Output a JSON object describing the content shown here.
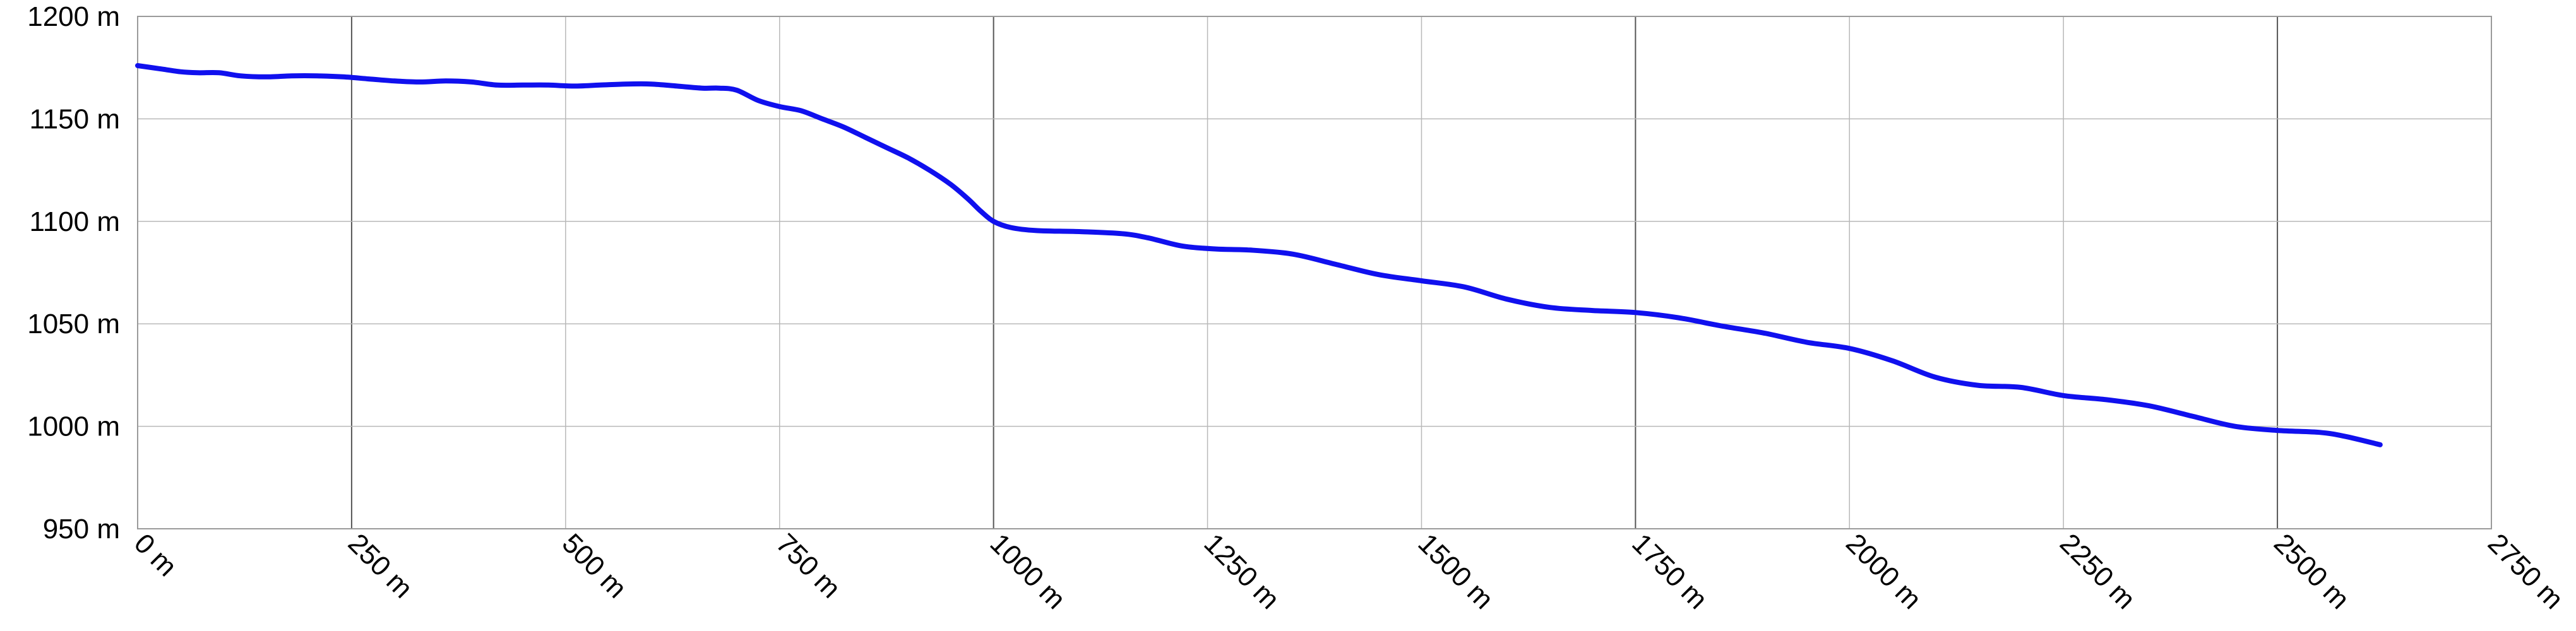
{
  "chart_data": {
    "type": "line",
    "title": "",
    "xlabel": "",
    "ylabel": "",
    "xlim": [
      0,
      2750
    ],
    "ylim": [
      950,
      1200
    ],
    "x_ticks": [
      0,
      250,
      500,
      750,
      1000,
      1250,
      1500,
      1750,
      2000,
      2250,
      2500,
      2750
    ],
    "x_tick_labels": [
      "0 m",
      "250 m",
      "500 m",
      "750 m",
      "1000 m",
      "1250 m",
      "1500 m",
      "1750 m",
      "2000 m",
      "2250 m",
      "2500 m",
      "2750 m"
    ],
    "y_ticks": [
      950,
      1000,
      1050,
      1100,
      1150,
      1200
    ],
    "y_tick_labels": [
      "950 m",
      "1000 m",
      "1050 m",
      "1100 m",
      "1150 m",
      "1200 m"
    ],
    "grid": true,
    "legend": "none",
    "colors": {
      "line": "#1010ee",
      "grid_major": "#555555",
      "grid_minor": "#b8b8b8",
      "frame": "#9a9a9a"
    },
    "series": [
      {
        "color": "#1010ee",
        "x": [
          0,
          25,
          50,
          70,
          95,
          120,
          150,
          180,
          210,
          240,
          270,
          300,
          330,
          360,
          390,
          420,
          450,
          480,
          510,
          540,
          570,
          600,
          630,
          660,
          680,
          700,
          725,
          750,
          775,
          800,
          825,
          850,
          875,
          900,
          925,
          950,
          970,
          985,
          1000,
          1020,
          1050,
          1100,
          1150,
          1180,
          1220,
          1260,
          1300,
          1350,
          1400,
          1450,
          1500,
          1550,
          1600,
          1650,
          1700,
          1750,
          1800,
          1850,
          1900,
          1950,
          2000,
          2050,
          2100,
          2150,
          2200,
          2250,
          2300,
          2350,
          2400,
          2450,
          2500,
          2550,
          2580,
          2620
        ],
        "y": [
          1176,
          1174.5,
          1173,
          1172.5,
          1172.5,
          1171,
          1170.5,
          1171,
          1171,
          1170.5,
          1169.5,
          1168.5,
          1168,
          1168.5,
          1168,
          1166.5,
          1166.5,
          1166.5,
          1166,
          1166.5,
          1167,
          1167,
          1166,
          1165,
          1165,
          1164,
          1159,
          1156,
          1154,
          1150,
          1146,
          1141,
          1136,
          1131,
          1125,
          1118,
          1111,
          1105,
          1100,
          1097,
          1095.5,
          1095,
          1094,
          1092,
          1088,
          1086.5,
          1086,
          1084,
          1079,
          1074,
          1071,
          1068,
          1062,
          1058,
          1056.5,
          1055.5,
          1053,
          1049,
          1045.5,
          1041,
          1038,
          1032,
          1024,
          1020,
          1019,
          1015,
          1013,
          1010,
          1005,
          1000,
          998,
          997,
          995,
          991
        ]
      }
    ]
  }
}
